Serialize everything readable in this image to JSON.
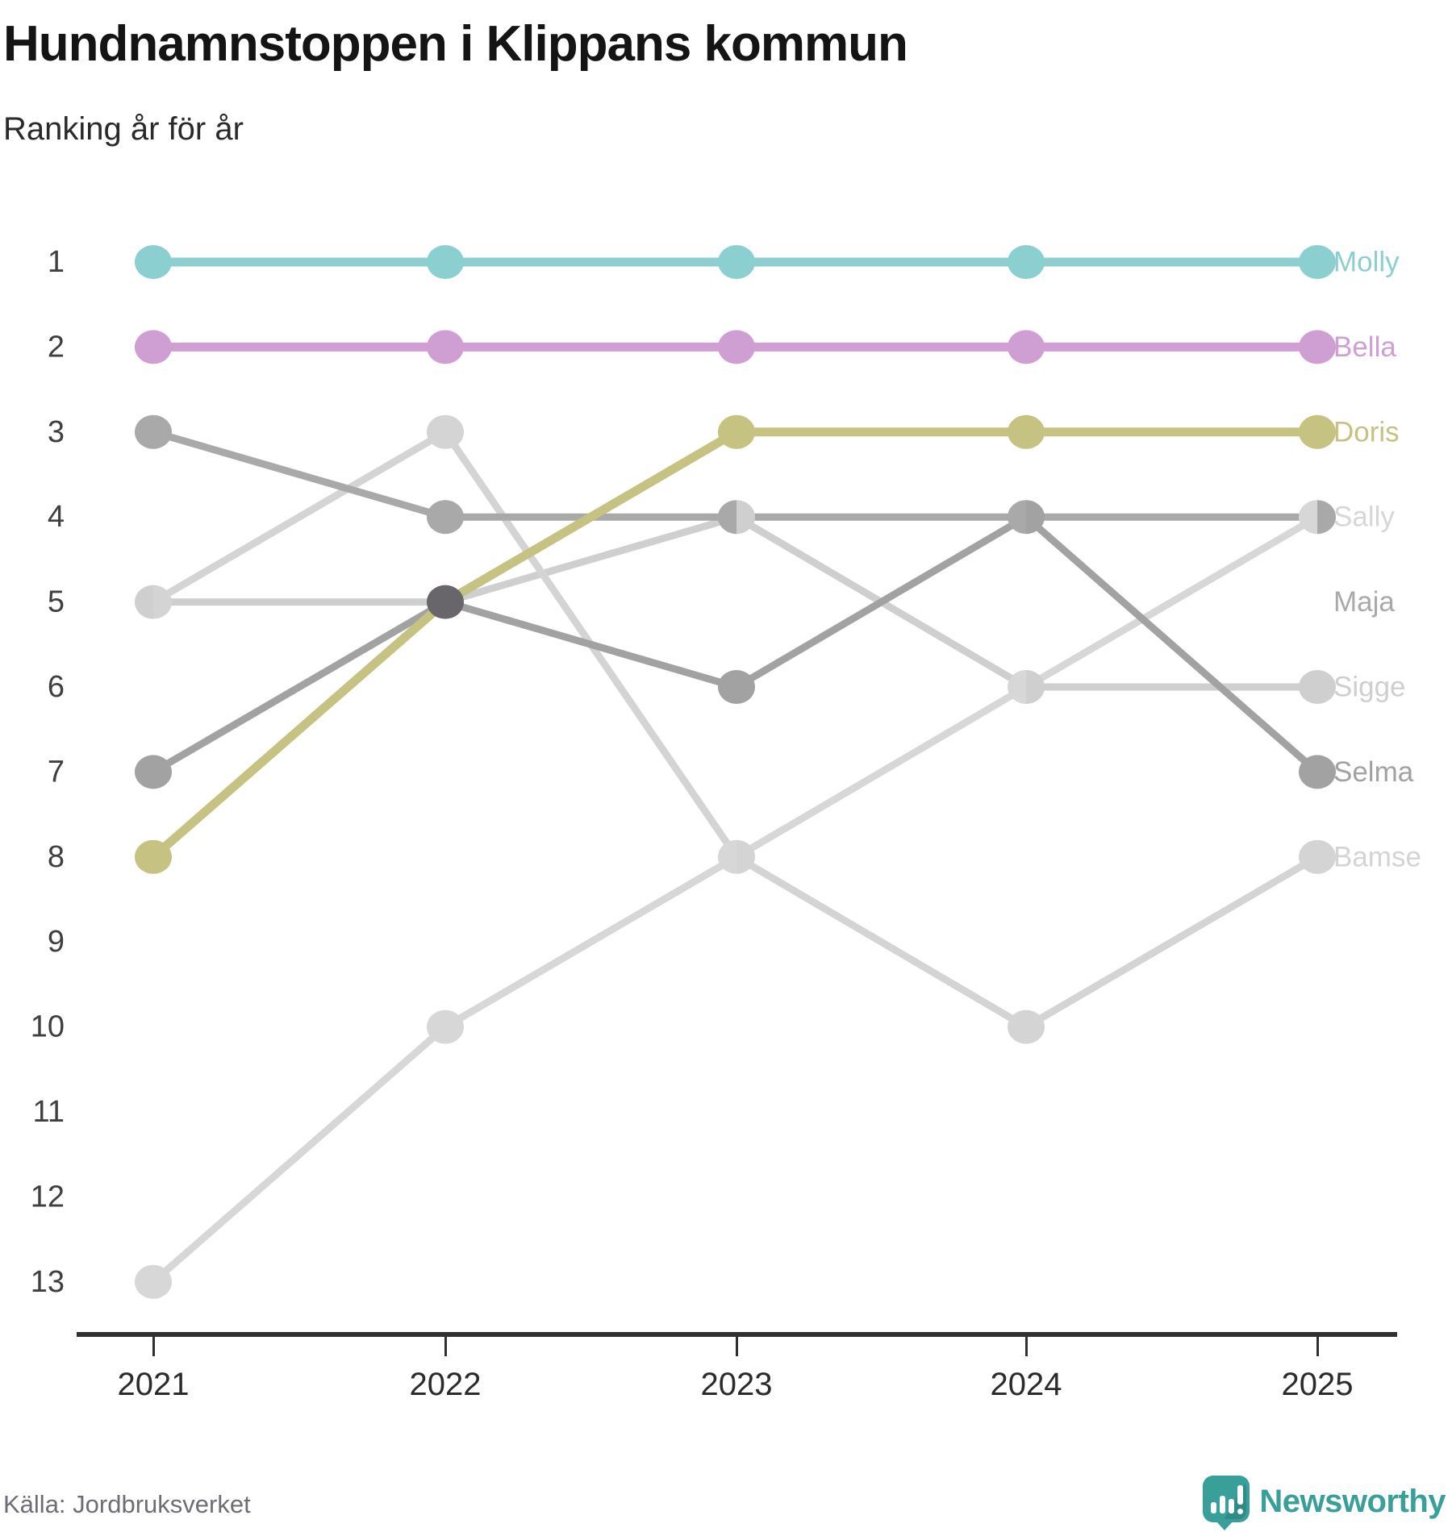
{
  "header": {
    "title": "Hundnamnstoppen i Klippans kommun",
    "subtitle": "Ranking år för år"
  },
  "footer": {
    "source": "Källa: Jordbruksverket",
    "brand": "Newsworthy"
  },
  "brand_color": "#38a099",
  "chart_data": {
    "type": "line",
    "variant": "bump-ranking",
    "title": "Hundnamnstoppen i Klippans kommun",
    "subtitle": "Ranking år för år",
    "x": [
      2021,
      2022,
      2023,
      2024,
      2025
    ],
    "series": [
      {
        "name": "Molly",
        "color": "#8bcfd0",
        "values": [
          1,
          1,
          1,
          1,
          1
        ]
      },
      {
        "name": "Bella",
        "color": "#cf9fd4",
        "values": [
          2,
          2,
          2,
          2,
          2
        ]
      },
      {
        "name": "Doris",
        "color": "#c5c282",
        "values": [
          8,
          5,
          3,
          3,
          3
        ]
      },
      {
        "name": "Sally",
        "color": "#d7d7d7",
        "values": [
          13,
          10,
          8,
          6,
          4
        ]
      },
      {
        "name": "Maja",
        "color": "#a9a9a9",
        "values": [
          3,
          4,
          4,
          4,
          4
        ]
      },
      {
        "name": "Sigge",
        "color": "#cfcfcf",
        "values": [
          5,
          5,
          4,
          6,
          6
        ]
      },
      {
        "name": "Selma",
        "color": "#a2a2a2",
        "values": [
          7,
          5,
          6,
          4,
          7
        ]
      },
      {
        "name": "Bamse",
        "color": "#d4d4d4",
        "values": [
          5,
          3,
          8,
          10,
          8
        ]
      }
    ],
    "yticks": [
      1,
      2,
      3,
      4,
      5,
      6,
      7,
      8,
      9,
      10,
      11,
      12,
      13
    ],
    "ylim": [
      1,
      13
    ],
    "y_inverted": true,
    "grid": false,
    "legend": "end-of-line-labels",
    "tie_marker_color": "#68656b",
    "axis_color": "#303030",
    "tick_label_color": "#3f3f3f"
  }
}
